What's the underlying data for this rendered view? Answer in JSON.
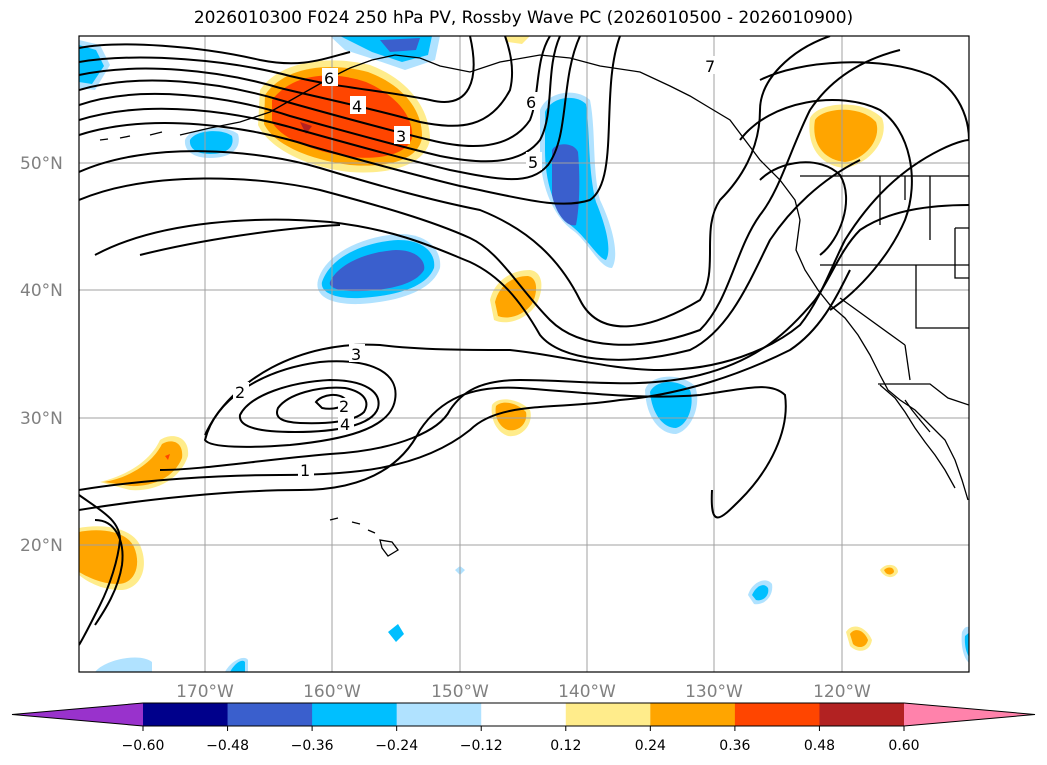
{
  "title": "2026010300 F024 250 hPa PV, Rossby Wave PC (2026010500 - 2026010900)",
  "map": {
    "lat_labels": [
      "50°N",
      "40°N",
      "30°N",
      "20°N"
    ],
    "lon_labels": [
      "170°W",
      "160°W",
      "150°W",
      "140°W",
      "130°W",
      "120°W"
    ],
    "contour_labels": [
      "7",
      "6",
      "6",
      "5",
      "4",
      "3",
      "3",
      "2",
      "2",
      "4",
      "1"
    ]
  },
  "colorbar": {
    "ticks": [
      "−0.60",
      "−0.48",
      "−0.36",
      "−0.24",
      "−0.12",
      "0.12",
      "0.24",
      "0.36",
      "0.48",
      "0.60"
    ],
    "colors": [
      "#9932cc",
      "#00008b",
      "#3a5fcd",
      "#00bfff",
      "#b0e2ff",
      "#ffffff",
      "#ffec8b",
      "#ffa500",
      "#ff4500",
      "#b22222",
      "#ff82ab"
    ]
  }
}
